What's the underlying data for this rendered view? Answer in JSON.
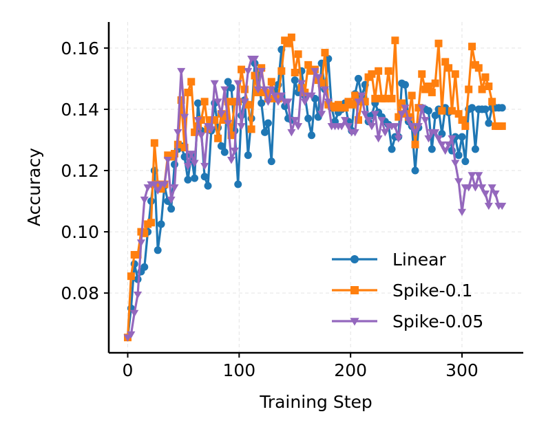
{
  "chart_data": {
    "type": "line",
    "title": "",
    "xlabel": "Training Step",
    "ylabel": "Accuracy",
    "xlim": [
      -17,
      355
    ],
    "ylim": [
      0.0605,
      0.1685
    ],
    "xticks": [
      0,
      100,
      200,
      300
    ],
    "xtick_labels": [
      "0",
      "100",
      "200",
      "300"
    ],
    "yticks": [
      0.08,
      0.1,
      0.12,
      0.14,
      0.16
    ],
    "ytick_labels": [
      "0.08",
      "0.10",
      "0.12",
      "0.14",
      "0.16"
    ],
    "grid": true,
    "legend_position": "lower-right",
    "x": [
      0,
      3,
      6,
      9,
      12,
      15,
      18,
      21,
      24,
      27,
      30,
      33,
      36,
      39,
      42,
      45,
      48,
      51,
      54,
      57,
      60,
      63,
      66,
      69,
      72,
      75,
      78,
      81,
      84,
      87,
      90,
      93,
      96,
      99,
      102,
      105,
      108,
      111,
      114,
      117,
      120,
      123,
      126,
      129,
      132,
      135,
      138,
      141,
      144,
      147,
      150,
      153,
      156,
      159,
      162,
      165,
      168,
      171,
      174,
      177,
      180,
      183,
      186,
      189,
      192,
      195,
      198,
      201,
      204,
      207,
      210,
      213,
      216,
      219,
      222,
      225,
      228,
      231,
      234,
      237,
      240,
      243,
      246,
      249,
      252,
      255,
      258,
      261,
      264,
      267,
      270,
      273,
      276,
      279,
      282,
      285,
      288,
      291,
      294,
      297,
      300,
      303,
      306,
      309,
      312,
      315,
      318,
      321,
      324,
      327,
      330,
      333,
      336
    ],
    "series": [
      {
        "name": "Linear",
        "color": "#1f77b4",
        "marker": "circle",
        "values": [
          0.0655,
          0.075,
          0.0895,
          0.0845,
          0.087,
          0.0885,
          0.1,
          0.11,
          0.12,
          0.094,
          0.1025,
          0.115,
          0.11,
          0.1075,
          0.122,
          0.127,
          0.128,
          0.1245,
          0.117,
          0.125,
          0.1175,
          0.142,
          0.133,
          0.118,
          0.115,
          0.133,
          0.142,
          0.134,
          0.128,
          0.126,
          0.149,
          0.147,
          0.133,
          0.1155,
          0.138,
          0.143,
          0.125,
          0.137,
          0.155,
          0.152,
          0.142,
          0.1325,
          0.1355,
          0.123,
          0.146,
          0.148,
          0.1595,
          0.141,
          0.137,
          0.1365,
          0.1495,
          0.1455,
          0.1525,
          0.1445,
          0.137,
          0.1315,
          0.1435,
          0.1375,
          0.155,
          0.1465,
          0.1565,
          0.1405,
          0.136,
          0.139,
          0.14,
          0.142,
          0.136,
          0.133,
          0.145,
          0.15,
          0.144,
          0.148,
          0.136,
          0.138,
          0.142,
          0.139,
          0.1375,
          0.136,
          0.135,
          0.127,
          0.131,
          0.131,
          0.1485,
          0.148,
          0.136,
          0.1345,
          0.12,
          0.134,
          0.1405,
          0.14,
          0.1395,
          0.127,
          0.138,
          0.14,
          0.132,
          0.1405,
          0.139,
          0.1265,
          0.131,
          0.125,
          0.131,
          0.123,
          0.14,
          0.1405,
          0.127,
          0.14,
          0.14,
          0.14,
          0.1355,
          0.1405,
          0.1405,
          0.1405,
          0.1405
        ]
      },
      {
        "name": "Spike-0.1",
        "color": "#ff7f0e",
        "marker": "square",
        "values": [
          0.0655,
          0.0855,
          0.0925,
          0.0925,
          0.1,
          0.0995,
          0.1025,
          0.103,
          0.129,
          0.1155,
          0.114,
          0.1155,
          0.125,
          0.1245,
          0.1255,
          0.1285,
          0.143,
          0.1275,
          0.1455,
          0.149,
          0.1325,
          0.1345,
          0.1365,
          0.1425,
          0.1335,
          0.1365,
          0.1365,
          0.1305,
          0.1385,
          0.1365,
          0.1425,
          0.1315,
          0.1425,
          0.1425,
          0.153,
          0.1465,
          0.1415,
          0.1335,
          0.151,
          0.1455,
          0.1535,
          0.1455,
          0.1435,
          0.149,
          0.1435,
          0.1435,
          0.1525,
          0.1625,
          0.1615,
          0.1635,
          0.152,
          0.158,
          0.147,
          0.1455,
          0.1545,
          0.1525,
          0.153,
          0.1495,
          0.1485,
          0.1585,
          0.1415,
          0.141,
          0.1405,
          0.1415,
          0.1405,
          0.1405,
          0.1425,
          0.1415,
          0.1445,
          0.1365,
          0.1425,
          0.1425,
          0.1505,
          0.1515,
          0.1435,
          0.1525,
          0.1435,
          0.1435,
          0.1525,
          0.1435,
          0.1625,
          0.1375,
          0.142,
          0.1385,
          0.1375,
          0.1445,
          0.1285,
          0.1405,
          0.1515,
          0.1465,
          0.1475,
          0.1455,
          0.1485,
          0.1615,
          0.1395,
          0.1555,
          0.1535,
          0.1395,
          0.1515,
          0.1385,
          0.1365,
          0.1345,
          0.1465,
          0.1605,
          0.1545,
          0.1535,
          0.1465,
          0.1505,
          0.1475,
          0.1425,
          0.1345,
          0.1345,
          0.1345
        ]
      },
      {
        "name": "Spike-0.05",
        "color": "#9467bd",
        "marker": "triangle-down",
        "values": [
          0.0655,
          0.0665,
          0.0735,
          0.0795,
          0.0965,
          0.1105,
          0.1145,
          0.1155,
          0.1155,
          0.1135,
          0.1155,
          0.1155,
          0.1235,
          0.1105,
          0.1145,
          0.1325,
          0.1525,
          0.1375,
          0.1215,
          0.1255,
          0.1225,
          0.1365,
          0.1315,
          0.1215,
          0.1345,
          0.1335,
          0.1485,
          0.1425,
          0.1385,
          0.1465,
          0.1355,
          0.1235,
          0.1265,
          0.1485,
          0.1345,
          0.1425,
          0.1525,
          0.1565,
          0.1565,
          0.1465,
          0.1525,
          0.1465,
          0.1425,
          0.1465,
          0.1445,
          0.1425,
          0.1445,
          0.1425,
          0.1425,
          0.1325,
          0.1365,
          0.1345,
          0.1485,
          0.1425,
          0.1445,
          0.1445,
          0.1525,
          0.1505,
          0.1385,
          0.1465,
          0.1425,
          0.1345,
          0.1345,
          0.1345,
          0.1345,
          0.1365,
          0.1345,
          0.1325,
          0.1325,
          0.1425,
          0.1445,
          0.1385,
          0.1365,
          0.1345,
          0.1385,
          0.1305,
          0.1365,
          0.1325,
          0.1345,
          0.1345,
          0.1345,
          0.1305,
          0.1385,
          0.1405,
          0.1365,
          0.1345,
          0.1325,
          0.1345,
          0.1405,
          0.1365,
          0.1305,
          0.1325,
          0.1325,
          0.1305,
          0.1285,
          0.1265,
          0.1285,
          0.1305,
          0.1225,
          0.1165,
          0.1065,
          0.1145,
          0.1145,
          0.1185,
          0.1145,
          0.1185,
          0.1145,
          0.1125,
          0.1085,
          0.1145,
          0.1125,
          0.1085,
          0.1085
        ]
      }
    ]
  }
}
